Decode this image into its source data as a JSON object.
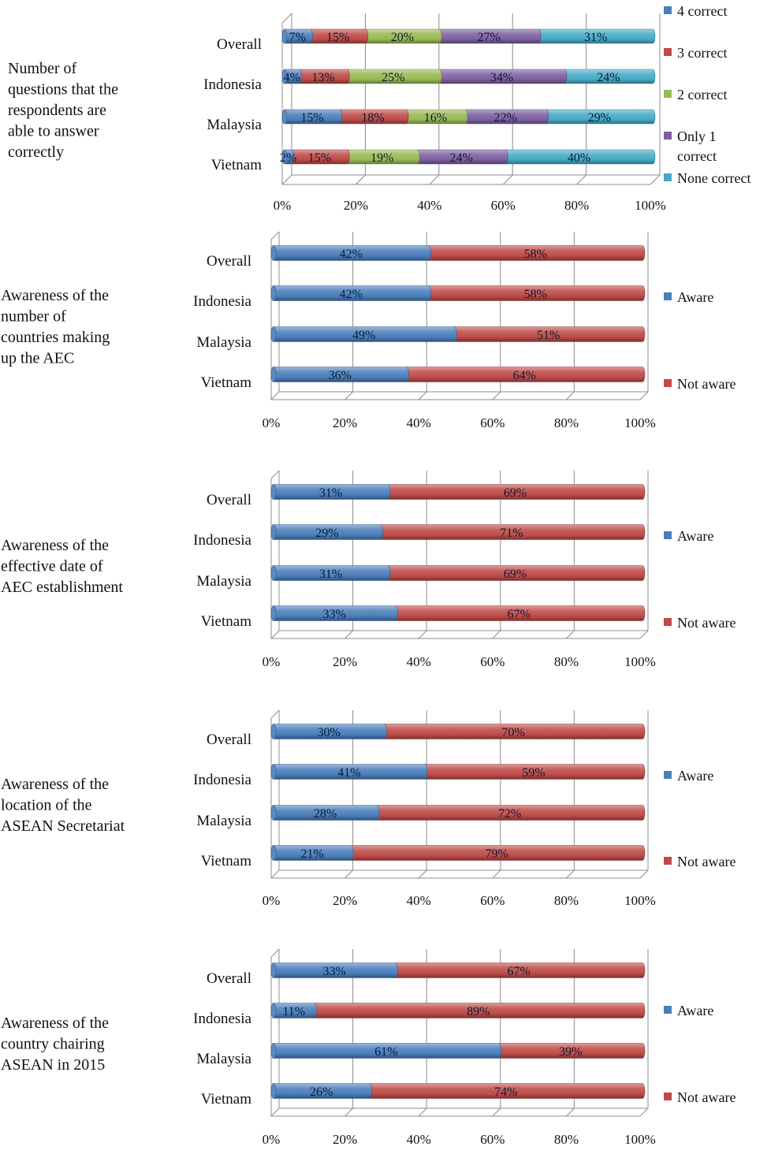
{
  "chart_data": [
    {
      "type": "bar",
      "stacked": true,
      "orientation": "horizontal",
      "title": "Number of questions that the respondents are able to answer correctly",
      "categories": [
        "Overall",
        "Indonesia",
        "Malaysia",
        "Vietnam"
      ],
      "series": [
        {
          "name": "4 correct",
          "color": "#4a7ebb",
          "values": [
            7,
            4,
            15,
            2
          ],
          "labels": [
            "7%",
            "4%",
            "15%",
            "2%"
          ]
        },
        {
          "name": "3 correct",
          "color": "#be4b48",
          "values": [
            15,
            13,
            18,
            15
          ],
          "labels": [
            "15%",
            "13%",
            "18%",
            "15%"
          ]
        },
        {
          "name": "2 correct",
          "color": "#98b954",
          "values": [
            20,
            25,
            16,
            19
          ],
          "labels": [
            "20%",
            "25%",
            "16%",
            "19%"
          ]
        },
        {
          "name": "Only 1 correct",
          "color": "#7d60a0",
          "values": [
            27,
            34,
            22,
            24
          ],
          "labels": [
            "27%",
            "34%",
            "22%",
            "24%"
          ]
        },
        {
          "name": "None correct",
          "color": "#46aac5",
          "values": [
            31,
            24,
            29,
            40
          ],
          "labels": [
            "31%",
            "24%",
            "29%",
            "40%"
          ]
        }
      ],
      "xticks": [
        "0%",
        "20%",
        "40%",
        "60%",
        "80%",
        "100%"
      ],
      "xlim": [
        0,
        100
      ],
      "legend_position": "right"
    },
    {
      "type": "bar",
      "stacked": true,
      "orientation": "horizontal",
      "title": "Awareness of the number of countries making up the AEC",
      "categories": [
        "Overall",
        "Indonesia",
        "Malaysia",
        "Vietnam"
      ],
      "series": [
        {
          "name": "Aware",
          "color": "#4a7ebb",
          "values": [
            42,
            42,
            49,
            36
          ],
          "labels": [
            "42%",
            "42%",
            "49%",
            "36%"
          ]
        },
        {
          "name": "Not aware",
          "color": "#be4b48",
          "values": [
            58,
            58,
            51,
            64
          ],
          "labels": [
            "58%",
            "58%",
            "51%",
            "64%"
          ]
        }
      ],
      "xticks": [
        "0%",
        "20%",
        "40%",
        "60%",
        "80%",
        "100%"
      ],
      "xlim": [
        0,
        100
      ],
      "legend_position": "right"
    },
    {
      "type": "bar",
      "stacked": true,
      "orientation": "horizontal",
      "title": "Awareness of the effective date of AEC establishment",
      "categories": [
        "Overall",
        "Indonesia",
        "Malaysia",
        "Vietnam"
      ],
      "series": [
        {
          "name": "Aware",
          "color": "#4a7ebb",
          "values": [
            31,
            29,
            31,
            33
          ],
          "labels": [
            "31%",
            "29%",
            "31%",
            "33%"
          ]
        },
        {
          "name": "Not aware",
          "color": "#be4b48",
          "values": [
            69,
            71,
            69,
            67
          ],
          "labels": [
            "69%",
            "71%",
            "69%",
            "67%"
          ]
        }
      ],
      "xticks": [
        "0%",
        "20%",
        "40%",
        "60%",
        "80%",
        "100%"
      ],
      "xlim": [
        0,
        100
      ],
      "legend_position": "right"
    },
    {
      "type": "bar",
      "stacked": true,
      "orientation": "horizontal",
      "title": "Awareness of the location of the ASEAN Secretariat",
      "categories": [
        "Overall",
        "Indonesia",
        "Malaysia",
        "Vietnam"
      ],
      "series": [
        {
          "name": "Aware",
          "color": "#4a7ebb",
          "values": [
            30,
            41,
            28,
            21
          ],
          "labels": [
            "30%",
            "41%",
            "28%",
            "21%"
          ]
        },
        {
          "name": "Not aware",
          "color": "#be4b48",
          "values": [
            70,
            59,
            72,
            79
          ],
          "labels": [
            "70%",
            "59%",
            "72%",
            "79%"
          ]
        }
      ],
      "xticks": [
        "0%",
        "20%",
        "40%",
        "60%",
        "80%",
        "100%"
      ],
      "xlim": [
        0,
        100
      ],
      "legend_position": "right"
    },
    {
      "type": "bar",
      "stacked": true,
      "orientation": "horizontal",
      "title": "Awareness of the country chairing ASEAN in 2015",
      "categories": [
        "Overall",
        "Indonesia",
        "Malaysia",
        "Vietnam"
      ],
      "series": [
        {
          "name": "Aware",
          "color": "#4a7ebb",
          "values": [
            33,
            11,
            61,
            26
          ],
          "labels": [
            "33%",
            "11%",
            "61%",
            "26%"
          ]
        },
        {
          "name": "Not aware",
          "color": "#be4b48",
          "values": [
            67,
            89,
            39,
            74
          ],
          "labels": [
            "67%",
            "89%",
            "39%",
            "74%"
          ]
        }
      ],
      "xticks": [
        "0%",
        "20%",
        "40%",
        "60%",
        "80%",
        "100%"
      ],
      "xlim": [
        0,
        100
      ],
      "legend_position": "right"
    }
  ],
  "panel_titles": [
    [
      "Number of",
      "questions that the",
      "respondents are",
      "able to answer",
      "correctly"
    ],
    [
      "Awareness of the",
      "number of",
      "countries making",
      "up the AEC"
    ],
    [
      "Awareness of the",
      "effective date of",
      "AEC establishment"
    ],
    [
      "Awareness of the",
      "location of the",
      "ASEAN Secretariat"
    ],
    [
      "Awareness of the",
      "country chairing",
      "ASEAN in 2015"
    ]
  ],
  "legend_label_lines": [
    [
      [
        "4 correct"
      ],
      [
        "3 correct"
      ],
      [
        "2 correct"
      ],
      [
        "Only 1",
        "correct"
      ],
      [
        "None correct"
      ]
    ],
    [
      [
        "Aware"
      ],
      [
        "Not aware"
      ]
    ],
    [
      [
        "Aware"
      ],
      [
        "Not aware"
      ]
    ],
    [
      [
        "Aware"
      ],
      [
        "Not aware"
      ]
    ],
    [
      [
        "Aware"
      ],
      [
        "Not aware"
      ]
    ]
  ]
}
